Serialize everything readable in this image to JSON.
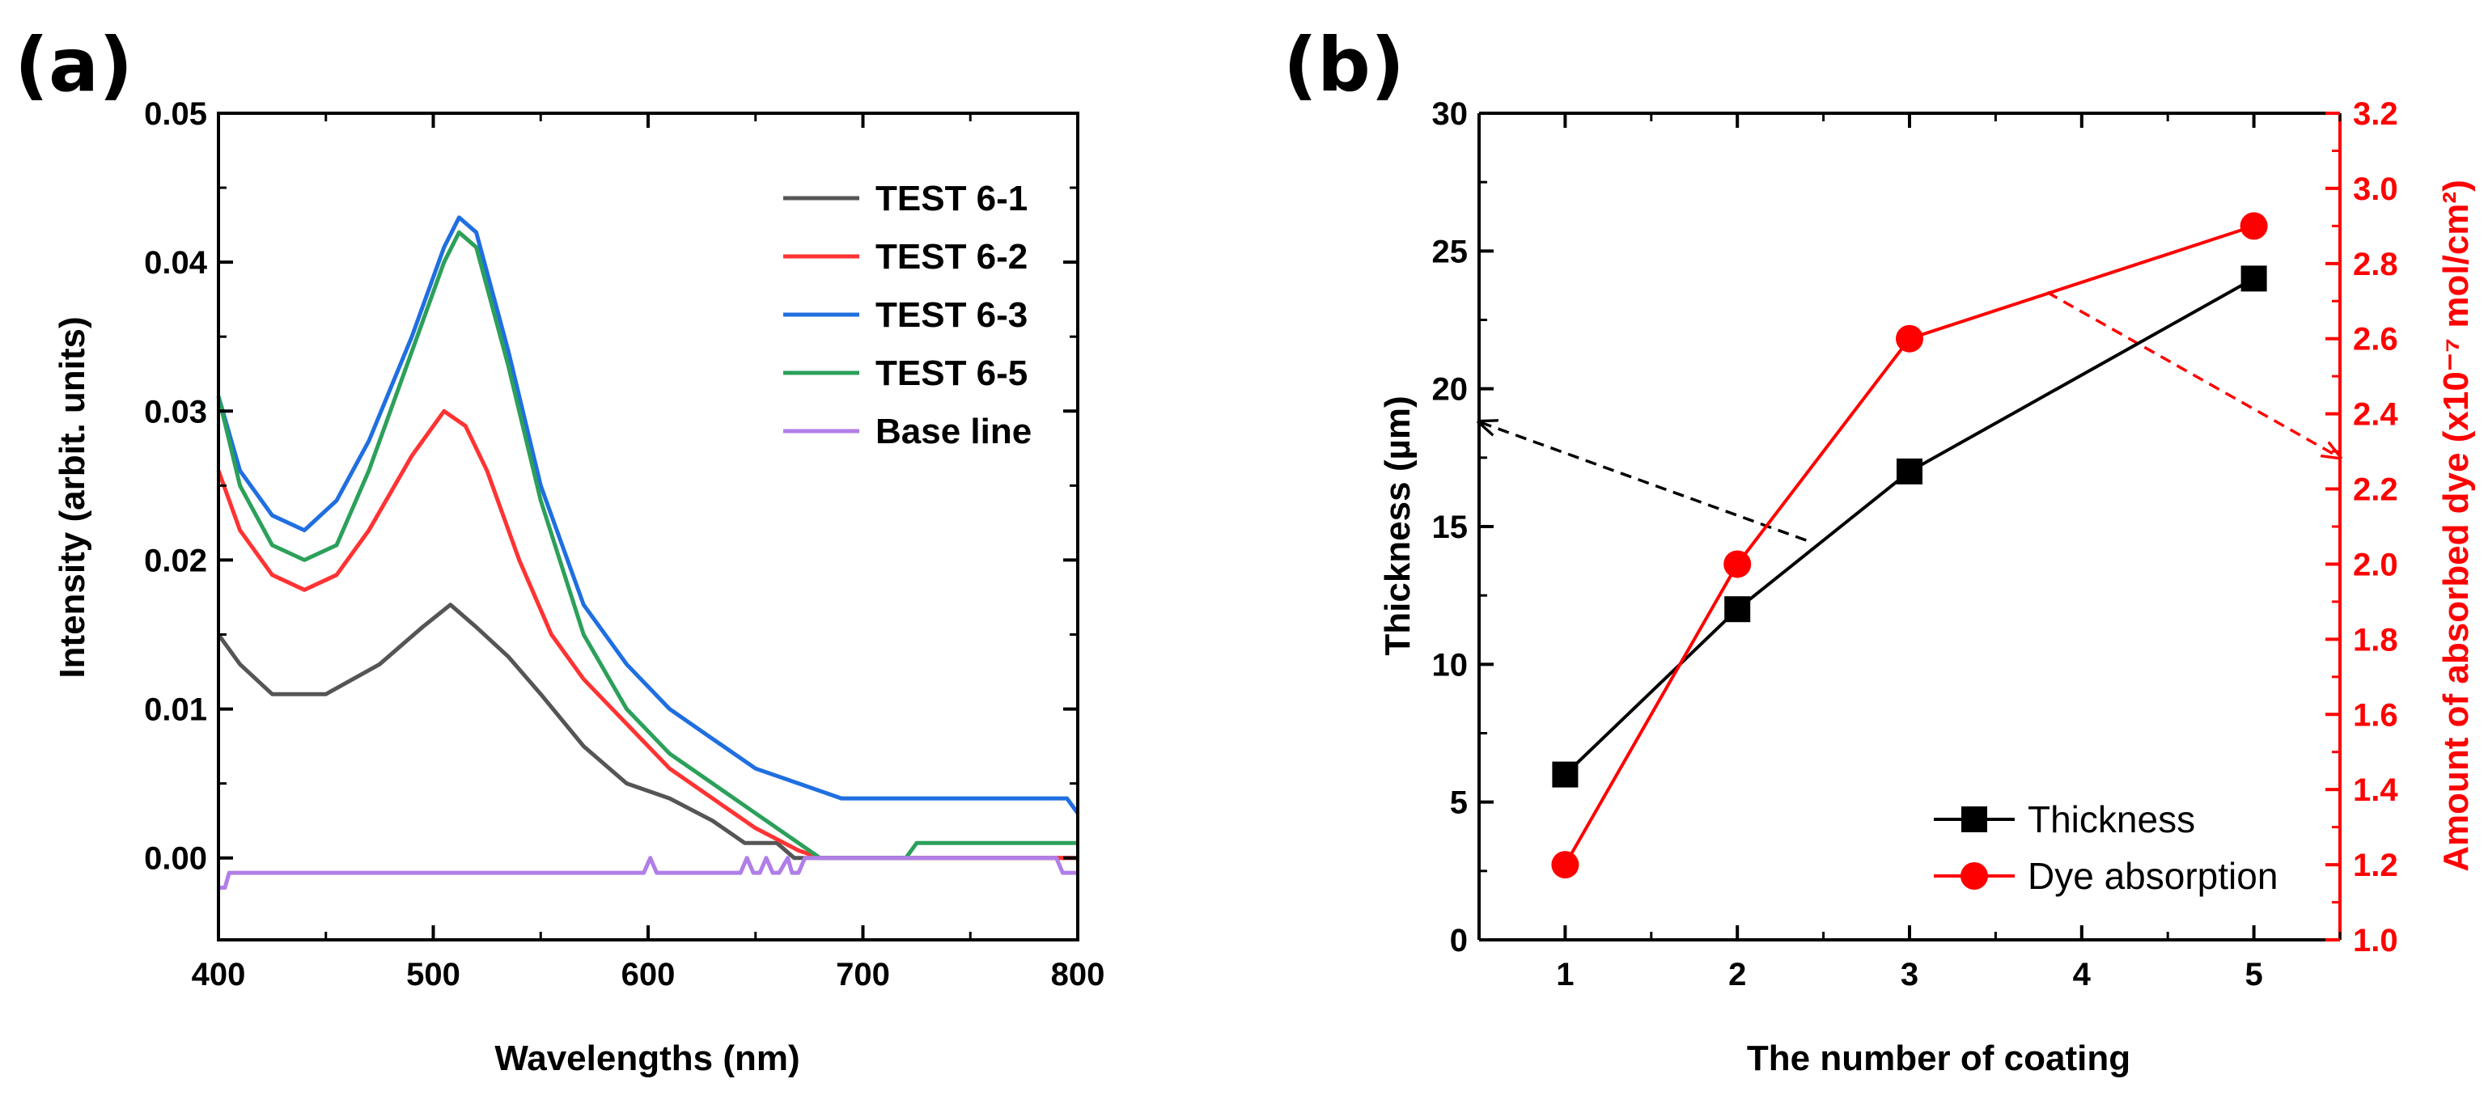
{
  "chart_data": [
    {
      "type": "line",
      "panel_label": "(a)",
      "title": "",
      "xlabel": "Wavelengths (nm)",
      "ylabel": "Intensity (arbit. units)",
      "xlim": [
        400,
        800
      ],
      "ylim": [
        -0.0055,
        0.05
      ],
      "xticks": [
        400,
        500,
        600,
        700,
        800
      ],
      "xtick_labels": [
        "400",
        "500",
        "600",
        "700",
        "800"
      ],
      "yticks": [
        0.0,
        0.01,
        0.02,
        0.03,
        0.04,
        0.05
      ],
      "ytick_labels": [
        "0.00",
        "0.01",
        "0.02",
        "0.03",
        "0.04",
        "0.05"
      ],
      "legend_position": "top-right",
      "series": [
        {
          "name": "TEST 6-1",
          "color": "#555555",
          "x": [
            400,
            410,
            425,
            450,
            475,
            495,
            508,
            520,
            535,
            550,
            570,
            590,
            610,
            630,
            645,
            660,
            668,
            800
          ],
          "y": [
            0.015,
            0.013,
            0.011,
            0.011,
            0.013,
            0.0155,
            0.017,
            0.0155,
            0.0135,
            0.011,
            0.0075,
            0.005,
            0.004,
            0.0025,
            0.001,
            0.001,
            0.0,
            0.0
          ]
        },
        {
          "name": "TEST 6-2",
          "color": "#ff3333",
          "x": [
            400,
            410,
            425,
            440,
            455,
            470,
            490,
            505,
            515,
            525,
            540,
            555,
            570,
            590,
            610,
            630,
            650,
            670,
            680,
            800
          ],
          "y": [
            0.026,
            0.022,
            0.019,
            0.018,
            0.019,
            0.022,
            0.027,
            0.03,
            0.029,
            0.026,
            0.02,
            0.015,
            0.012,
            0.009,
            0.006,
            0.004,
            0.002,
            0.0005,
            0.0,
            0.0
          ]
        },
        {
          "name": "TEST 6-3",
          "color": "#1f6fe0",
          "x": [
            400,
            410,
            425,
            440,
            455,
            470,
            490,
            505,
            512,
            520,
            535,
            550,
            570,
            590,
            610,
            630,
            650,
            670,
            690,
            710,
            795,
            800
          ],
          "y": [
            0.031,
            0.026,
            0.023,
            0.022,
            0.024,
            0.028,
            0.035,
            0.041,
            0.043,
            0.042,
            0.034,
            0.025,
            0.017,
            0.013,
            0.01,
            0.008,
            0.006,
            0.005,
            0.004,
            0.004,
            0.004,
            0.003
          ]
        },
        {
          "name": "TEST 6-5",
          "color": "#2ca05a",
          "x": [
            400,
            410,
            425,
            440,
            455,
            470,
            490,
            505,
            512,
            520,
            535,
            550,
            570,
            590,
            610,
            630,
            650,
            670,
            680,
            720,
            725,
            800
          ],
          "y": [
            0.031,
            0.025,
            0.021,
            0.02,
            0.021,
            0.026,
            0.034,
            0.04,
            0.042,
            0.041,
            0.033,
            0.024,
            0.015,
            0.01,
            0.007,
            0.005,
            0.003,
            0.001,
            0.0,
            0.0,
            0.001,
            0.001
          ]
        },
        {
          "name": "Base line",
          "color": "#b07ee8",
          "x": [
            400,
            403,
            405,
            598,
            601,
            604,
            643,
            646,
            649,
            652,
            655,
            658,
            661,
            665,
            667,
            670,
            673,
            790,
            793,
            800
          ],
          "y": [
            -0.002,
            -0.002,
            -0.001,
            -0.001,
            0.0,
            -0.001,
            -0.001,
            0.0,
            -0.001,
            -0.001,
            0.0,
            -0.001,
            -0.001,
            0.0,
            -0.001,
            -0.001,
            0.0,
            0.0,
            -0.001,
            -0.001
          ]
        }
      ]
    },
    {
      "type": "line",
      "panel_label": "(b)",
      "title": "",
      "xlabel": "The number of coating",
      "ylabel": "Thickness (µm)",
      "y2label": "Amount of absorbed dye (x10⁻⁷ mol/cm²)",
      "xlim": [
        0.5,
        5.5
      ],
      "ylim": [
        0,
        30
      ],
      "y2lim": [
        1.0,
        3.2
      ],
      "xticks": [
        1,
        2,
        3,
        4,
        5
      ],
      "xtick_labels": [
        "1",
        "2",
        "3",
        "4",
        "5"
      ],
      "yticks": [
        0,
        5,
        10,
        15,
        20,
        25,
        30
      ],
      "ytick_labels": [
        "0",
        "5",
        "10",
        "15",
        "20",
        "25",
        "30"
      ],
      "y2ticks": [
        1.0,
        1.2,
        1.4,
        1.6,
        1.8,
        2.0,
        2.2,
        2.4,
        2.6,
        2.8,
        3.0,
        3.2
      ],
      "y2tick_labels": [
        "1.0",
        "1.2",
        "1.4",
        "1.6",
        "1.8",
        "2.0",
        "2.2",
        "2.4",
        "2.6",
        "2.8",
        "3.0",
        "3.2"
      ],
      "legend_position": "bottom-right",
      "series": [
        {
          "name": "Thickness",
          "axis": "left",
          "marker": "square",
          "color": "#000000",
          "x": [
            1,
            2,
            3,
            5
          ],
          "values": [
            6,
            12,
            17,
            24
          ]
        },
        {
          "name": "Dye absorption",
          "axis": "right",
          "marker": "circle",
          "color": "#ff0000",
          "x": [
            1,
            2,
            3,
            5
          ],
          "values": [
            1.2,
            2.0,
            2.6,
            2.9
          ]
        }
      ],
      "annotations": [
        {
          "type": "arrow",
          "color": "#000000",
          "from": [
            2.4,
            14.5
          ],
          "to": [
            0.5,
            18.8
          ],
          "meaning": "points to left axis"
        },
        {
          "type": "arrow",
          "color": "#ff0000",
          "from": [
            3.8,
            23.5
          ],
          "to": [
            5.5,
            17.5
          ],
          "meaning": "points to right axis"
        }
      ]
    }
  ]
}
